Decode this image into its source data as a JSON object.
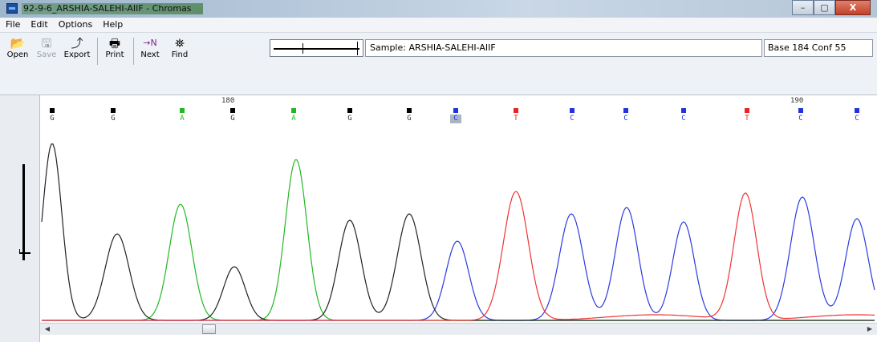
{
  "window": {
    "title": "92-9-6_ARSHIA-SALEHI-AIIF - Chromas",
    "controls": {
      "minimize": "–",
      "maximize": "▢",
      "close": "X"
    }
  },
  "menu": [
    "File",
    "Edit",
    "Options",
    "Help"
  ],
  "toolbar": {
    "open": {
      "label": "Open",
      "icon": "open-folder-icon"
    },
    "save": {
      "label": "Save",
      "icon": "floppy-disk-icon"
    },
    "export": {
      "label": "Export",
      "icon": "export-icon"
    },
    "print": {
      "label": "Print",
      "icon": "printer-icon"
    },
    "next": {
      "label": "Next",
      "icon": "next-n-icon",
      "glyph": "→N"
    },
    "find": {
      "label": "Find",
      "icon": "binoculars-icon"
    }
  },
  "sample": "Sample: ARSHIA-SALEHI-AIIF",
  "status": "Base 184  Conf 55",
  "position_labels": [
    "180",
    "190"
  ],
  "bases": [
    {
      "letter": "G",
      "color": "#000000"
    },
    {
      "letter": "G",
      "color": "#000000"
    },
    {
      "letter": "A",
      "color": "#22b822"
    },
    {
      "letter": "G",
      "color": "#000000"
    },
    {
      "letter": "A",
      "color": "#22b822"
    },
    {
      "letter": "G",
      "color": "#000000"
    },
    {
      "letter": "G",
      "color": "#000000"
    },
    {
      "letter": "C",
      "color": "#2233dd",
      "selected": true
    },
    {
      "letter": "T",
      "color": "#ee2222"
    },
    {
      "letter": "C",
      "color": "#2233dd"
    },
    {
      "letter": "C",
      "color": "#2233dd"
    },
    {
      "letter": "C",
      "color": "#2233dd"
    },
    {
      "letter": "T",
      "color": "#ee2222"
    },
    {
      "letter": "C",
      "color": "#2233dd"
    },
    {
      "letter": "C",
      "color": "#2233dd"
    }
  ],
  "colors": {
    "A": "#22b822",
    "C": "#2a3ae0",
    "G": "#222222",
    "T": "#f03434"
  }
}
